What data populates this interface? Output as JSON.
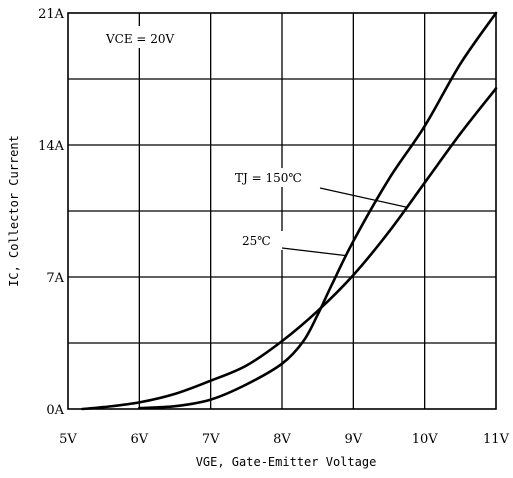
{
  "chart_data": {
    "type": "line",
    "xlabel": "VGE, Gate-Emitter Voltage",
    "ylabel": "IC, Collector Current",
    "xlim": [
      5,
      11
    ],
    "ylim": [
      0,
      21
    ],
    "x_ticks": [
      5,
      6,
      7,
      8,
      9,
      10,
      11
    ],
    "x_tick_labels": [
      "5V",
      "6V",
      "7V",
      "8V",
      "9V",
      "10V",
      "11V"
    ],
    "y_ticks": [
      0,
      7,
      14,
      21
    ],
    "y_tick_labels": [
      "0A",
      "7A",
      "14A",
      "21A"
    ],
    "grid": true,
    "annotations": [
      {
        "text": "VCE = 20V"
      }
    ],
    "series": [
      {
        "name": "TJ = 150℃",
        "points": [
          [
            5.2,
            0
          ],
          [
            5.5,
            0.1
          ],
          [
            6.0,
            0.35
          ],
          [
            6.5,
            0.8
          ],
          [
            7.0,
            1.5
          ],
          [
            7.5,
            2.3
          ],
          [
            8.0,
            3.6
          ],
          [
            8.5,
            5.2
          ],
          [
            9.0,
            7.1
          ],
          [
            9.5,
            9.4
          ],
          [
            10.0,
            12.0
          ],
          [
            10.5,
            14.6
          ],
          [
            11.0,
            17.0
          ]
        ]
      },
      {
        "name": "25℃",
        "points": [
          [
            6.0,
            0.05
          ],
          [
            6.5,
            0.15
          ],
          [
            7.0,
            0.5
          ],
          [
            7.5,
            1.3
          ],
          [
            8.0,
            2.4
          ],
          [
            8.3,
            3.6
          ],
          [
            8.5,
            5.0
          ],
          [
            8.7,
            6.6
          ],
          [
            9.0,
            8.9
          ],
          [
            9.5,
            12.2
          ],
          [
            10.0,
            15.0
          ],
          [
            10.5,
            18.3
          ],
          [
            11.0,
            21.0
          ]
        ]
      }
    ]
  }
}
